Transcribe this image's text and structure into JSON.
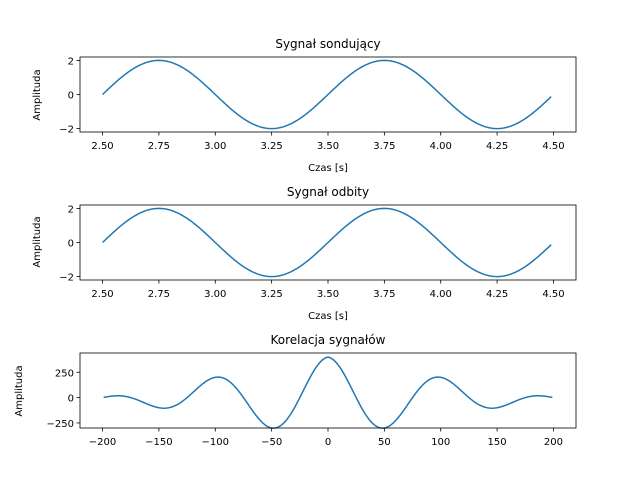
{
  "colors": {
    "line": "#1f77b4",
    "axes": "#000000",
    "background": "#ffffff"
  },
  "chart_data": [
    {
      "type": "line",
      "title": "Sygnał sondujący",
      "xlabel": "Czas [s]",
      "ylabel": "Amplituda",
      "xlim": [
        2.4,
        4.6
      ],
      "ylim": [
        -2.2,
        2.2
      ],
      "xticks": [
        2.5,
        2.75,
        3.0,
        3.25,
        3.5,
        3.75,
        4.0,
        4.25,
        4.5
      ],
      "xtick_labels": [
        "2.50",
        "2.75",
        "3.00",
        "3.25",
        "3.50",
        "3.75",
        "4.00",
        "4.25",
        "4.50"
      ],
      "yticks": [
        -2,
        0,
        2
      ],
      "ytick_labels": [
        "−2",
        "0",
        "2"
      ],
      "series": [
        {
          "x_start": 2.5,
          "x_end": 4.49,
          "x_step": 0.01,
          "amplitude": 2,
          "frequency_hz": 1,
          "phase": "sine starting at 0 for x = 2.5"
        }
      ]
    },
    {
      "type": "line",
      "title": "Sygnał odbity",
      "xlabel": "Czas [s]",
      "ylabel": "Amplituda",
      "xlim": [
        2.4,
        4.6
      ],
      "ylim": [
        -2.2,
        2.2
      ],
      "xticks": [
        2.5,
        2.75,
        3.0,
        3.25,
        3.5,
        3.75,
        4.0,
        4.25,
        4.5
      ],
      "xtick_labels": [
        "2.50",
        "2.75",
        "3.00",
        "3.25",
        "3.50",
        "3.75",
        "4.00",
        "4.25",
        "4.50"
      ],
      "yticks": [
        -2,
        0,
        2
      ],
      "ytick_labels": [
        "−2",
        "0",
        "2"
      ],
      "series": [
        {
          "x_start": 2.5,
          "x_end": 4.49,
          "x_step": 0.01,
          "amplitude": 2,
          "frequency_hz": 1,
          "phase": "sine starting at 0 for x = 2.5"
        }
      ]
    },
    {
      "type": "line",
      "title": "Korelacja sygnałów",
      "xlabel": "",
      "ylabel": "Amplituda",
      "xlim": [
        -220,
        220
      ],
      "ylim": [
        -300,
        440
      ],
      "xticks": [
        -200,
        -150,
        -100,
        -50,
        0,
        50,
        100,
        150,
        200
      ],
      "xtick_labels": [
        "−200",
        "−150",
        "−100",
        "−50",
        "0",
        "50",
        "100",
        "150",
        "200"
      ],
      "yticks": [
        -250,
        0,
        250
      ],
      "ytick_labels": [
        "−250",
        "0",
        "250"
      ],
      "series": [
        {
          "x_start": -199,
          "x_end": 199,
          "x_step": 1,
          "peak": 400,
          "period": 100,
          "shape": "triangular-windowed cosine (autocorrelation)"
        }
      ]
    }
  ]
}
